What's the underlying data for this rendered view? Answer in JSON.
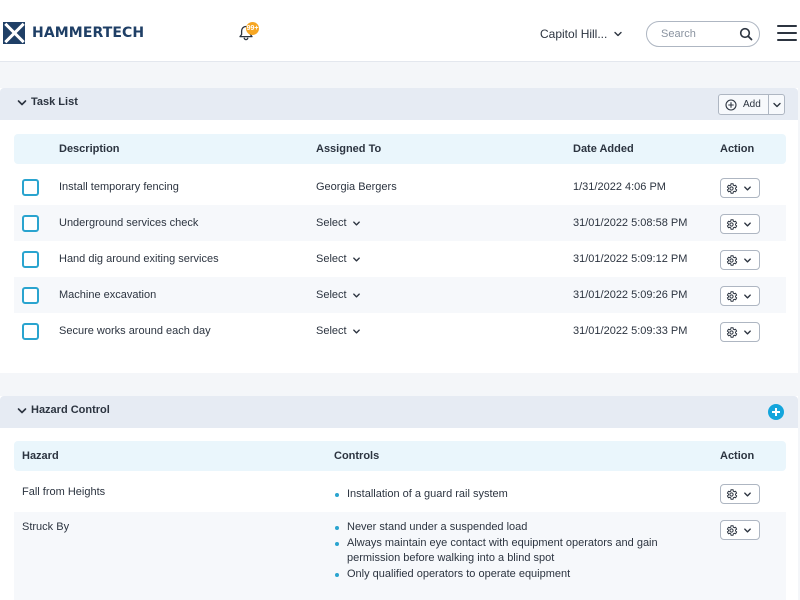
{
  "brand": {
    "name": "HAMMERTECH",
    "accent": "#1f3f66",
    "highlight": "#2aa4cf"
  },
  "header": {
    "notifications_badge": "99+",
    "location": "Capitol Hill...",
    "search_placeholder": "Search"
  },
  "tasks": {
    "title": "Task List",
    "add_label": "Add",
    "columns": {
      "description": "Description",
      "assigned": "Assigned To",
      "date": "Date Added",
      "action": "Action"
    },
    "rows": [
      {
        "description": "Install temporary fencing",
        "assigned": "Georgia Bergers",
        "date": "1/31/2022 4:06 PM"
      },
      {
        "description": "Underground services check",
        "assigned": "Select",
        "date": "31/01/2022 5:08:58 PM"
      },
      {
        "description": "Hand dig around exiting services",
        "assigned": "Select",
        "date": "31/01/2022 5:09:12 PM"
      },
      {
        "description": "Machine excavation",
        "assigned": "Select",
        "date": "31/01/2022 5:09:26 PM"
      },
      {
        "description": "Secure works around each day",
        "assigned": "Select",
        "date": "31/01/2022 5:09:33 PM"
      }
    ]
  },
  "hazards": {
    "title": "Hazard Control",
    "columns": {
      "hazard": "Hazard",
      "controls": "Controls",
      "action": "Action"
    },
    "rows": [
      {
        "hazard": "Fall from Heights",
        "controls": [
          "Installation of a guard rail system"
        ]
      },
      {
        "hazard": "Struck By",
        "controls": [
          "Never stand under a suspended load",
          "Always maintain eye contact with equipment operators and gain permission before walking into a blind spot",
          "Only qualified operators to operate equipment"
        ]
      }
    ]
  }
}
